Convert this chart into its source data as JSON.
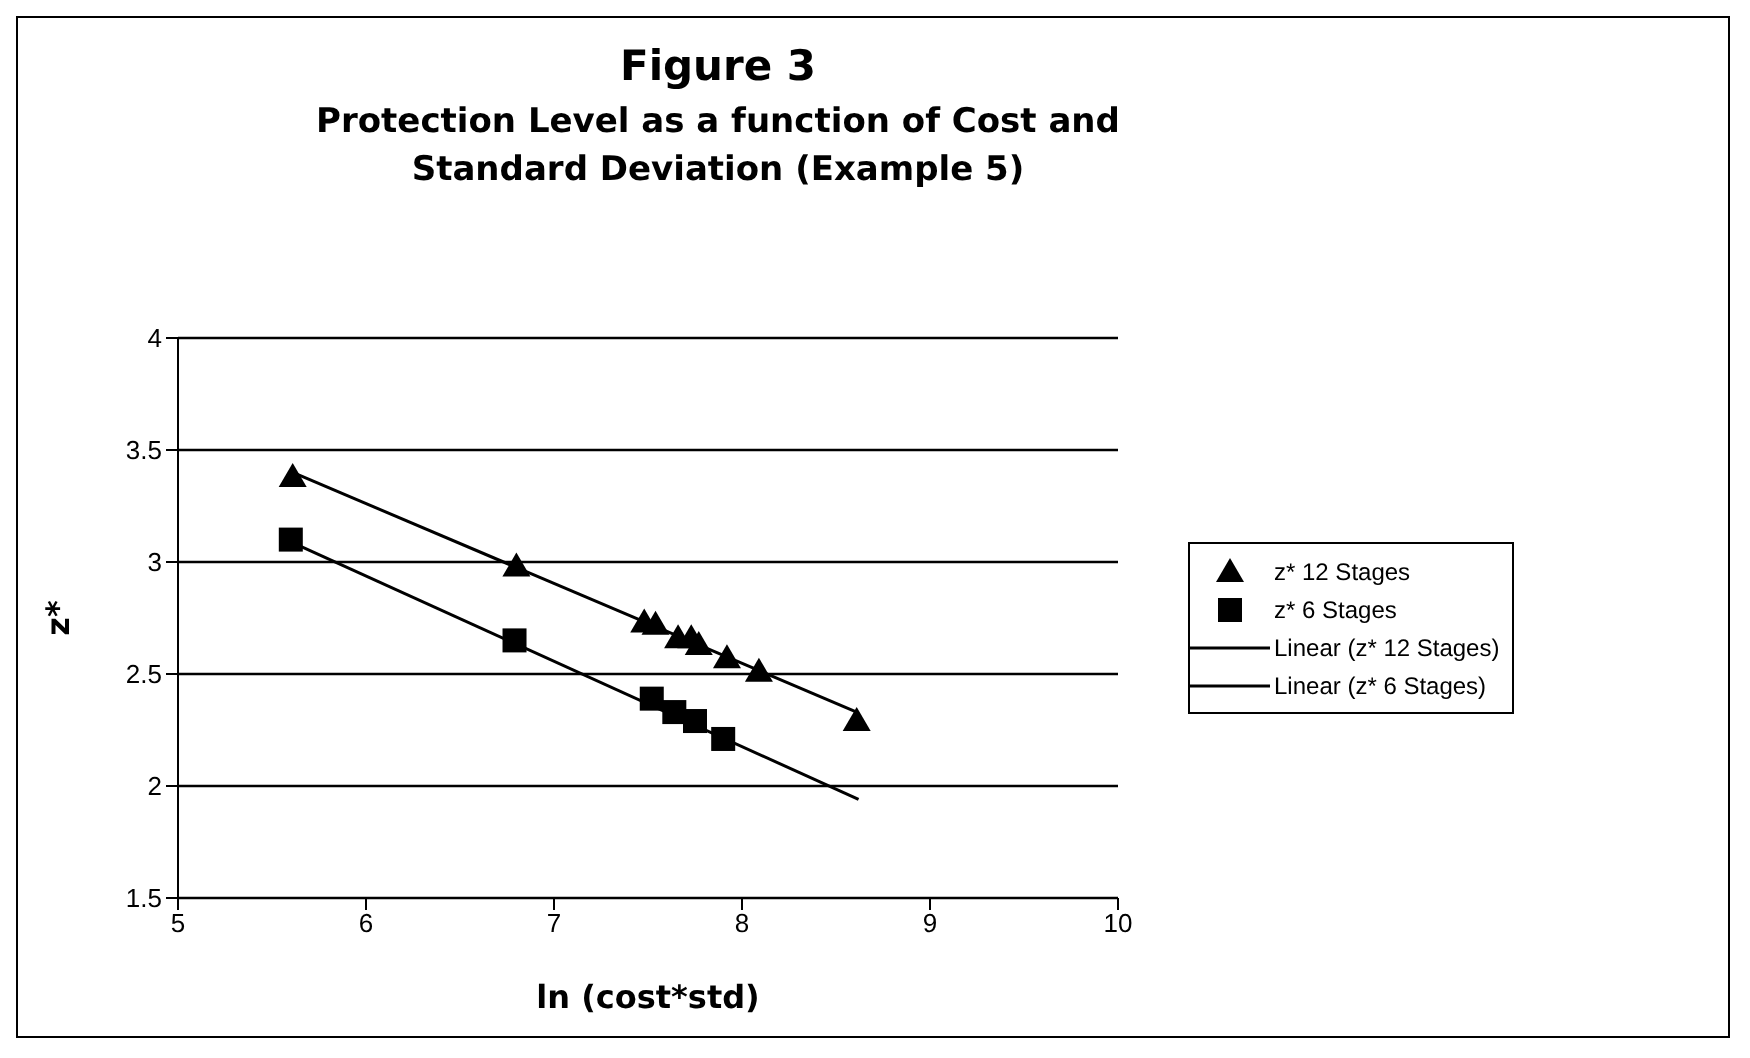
{
  "chart_data": {
    "type": "scatter",
    "title": "Figure 3",
    "subtitle": "Protection Level as a function of  Cost and Standard Deviation (Example 5)",
    "xlabel": "ln (cost*std)",
    "ylabel": "z*",
    "xlim": [
      5,
      10
    ],
    "xticks": [
      5,
      6,
      7,
      8,
      9,
      10
    ],
    "ylim": [
      1.5,
      4
    ],
    "yticks": [
      1.5,
      2,
      2.5,
      3,
      3.5,
      4
    ],
    "grid": "y",
    "legend": "right",
    "series": [
      {
        "name": "z* 12 Stages",
        "type": "scatter",
        "marker": "triangle",
        "color": "#000000",
        "x": [
          5.61,
          6.8,
          7.48,
          7.54,
          7.66,
          7.73,
          7.77,
          7.92,
          8.09,
          8.61
        ],
        "values": [
          3.38,
          2.98,
          2.73,
          2.72,
          2.66,
          2.66,
          2.63,
          2.57,
          2.51,
          2.29
        ]
      },
      {
        "name": "z* 6 Stages",
        "type": "scatter",
        "marker": "square",
        "color": "#000000",
        "x": [
          5.6,
          6.79,
          7.52,
          7.64,
          7.75,
          7.9
        ],
        "values": [
          3.1,
          2.65,
          2.39,
          2.33,
          2.29,
          2.21
        ]
      },
      {
        "name": "Linear (z* 12 Stages)",
        "type": "line",
        "line_style": "solid",
        "marker": "none",
        "color": "#000000",
        "x": [
          5.61,
          8.61
        ],
        "values": [
          3.4,
          2.33
        ]
      },
      {
        "name": "Linear (z* 6 Stages)",
        "type": "line",
        "line_style": "solid",
        "marker": "none",
        "color": "#000000",
        "x": [
          5.6,
          8.62
        ],
        "values": [
          3.09,
          1.94
        ]
      }
    ]
  }
}
